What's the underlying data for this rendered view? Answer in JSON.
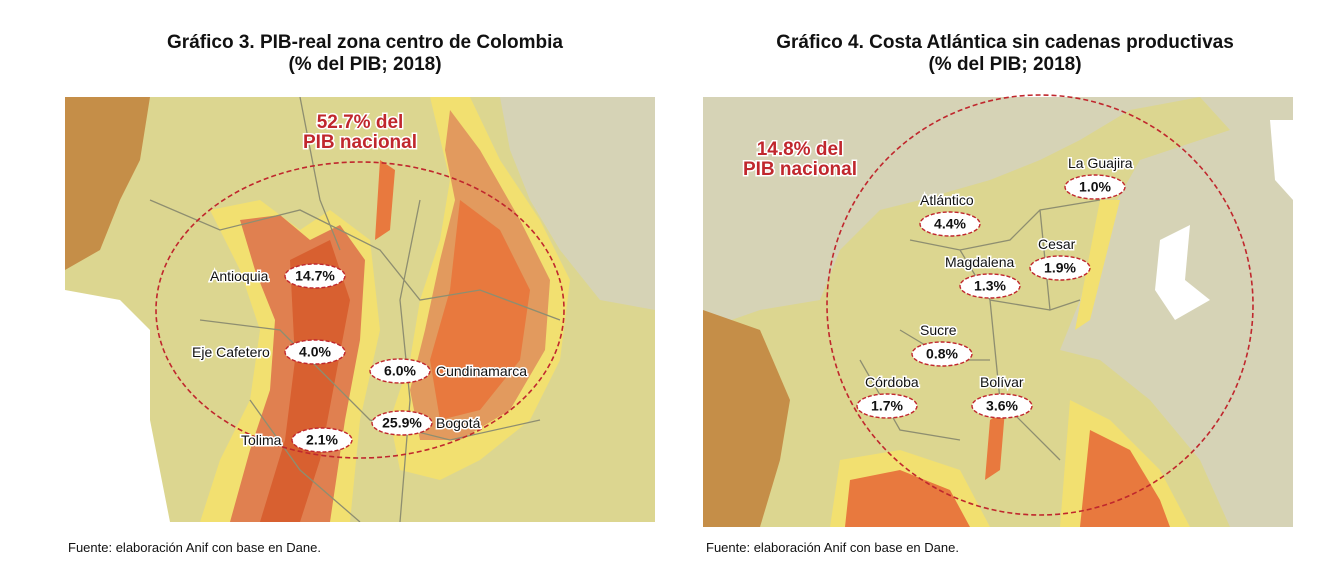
{
  "panels": [
    {
      "title": "Gráfico 3. PIB-real zona centro de Colombia",
      "subtitle": "(% del PIB; 2018)",
      "total": [
        "52.7% del",
        "PIB nacional"
      ],
      "regions": [
        {
          "name": "Antioquia",
          "value": "14.7%"
        },
        {
          "name": "Eje Cafetero",
          "value": "4.0%"
        },
        {
          "name": "Cundinamarca",
          "value": "6.0%"
        },
        {
          "name": "Bogotá",
          "value": "25.9%"
        },
        {
          "name": "Tolima",
          "value": "2.1%"
        }
      ],
      "source": "Fuente: elaboración Anif con base en Dane."
    },
    {
      "title": "Gráfico 4. Costa Atlántica sin cadenas productivas",
      "subtitle": "(% del PIB; 2018)",
      "total": [
        "14.8% del",
        "PIB nacional"
      ],
      "regions": [
        {
          "name": "La Guajira",
          "value": "1.0%"
        },
        {
          "name": "Atlántico",
          "value": "4.4%"
        },
        {
          "name": "Cesar",
          "value": "1.9%"
        },
        {
          "name": "Magdalena",
          "value": "1.3%"
        },
        {
          "name": "Sucre",
          "value": "0.8%"
        },
        {
          "name": "Córdoba",
          "value": "1.7%"
        },
        {
          "name": "Bolívar",
          "value": "3.6%"
        }
      ],
      "source": "Fuente: elaboración Anif con base en Dane."
    }
  ]
}
